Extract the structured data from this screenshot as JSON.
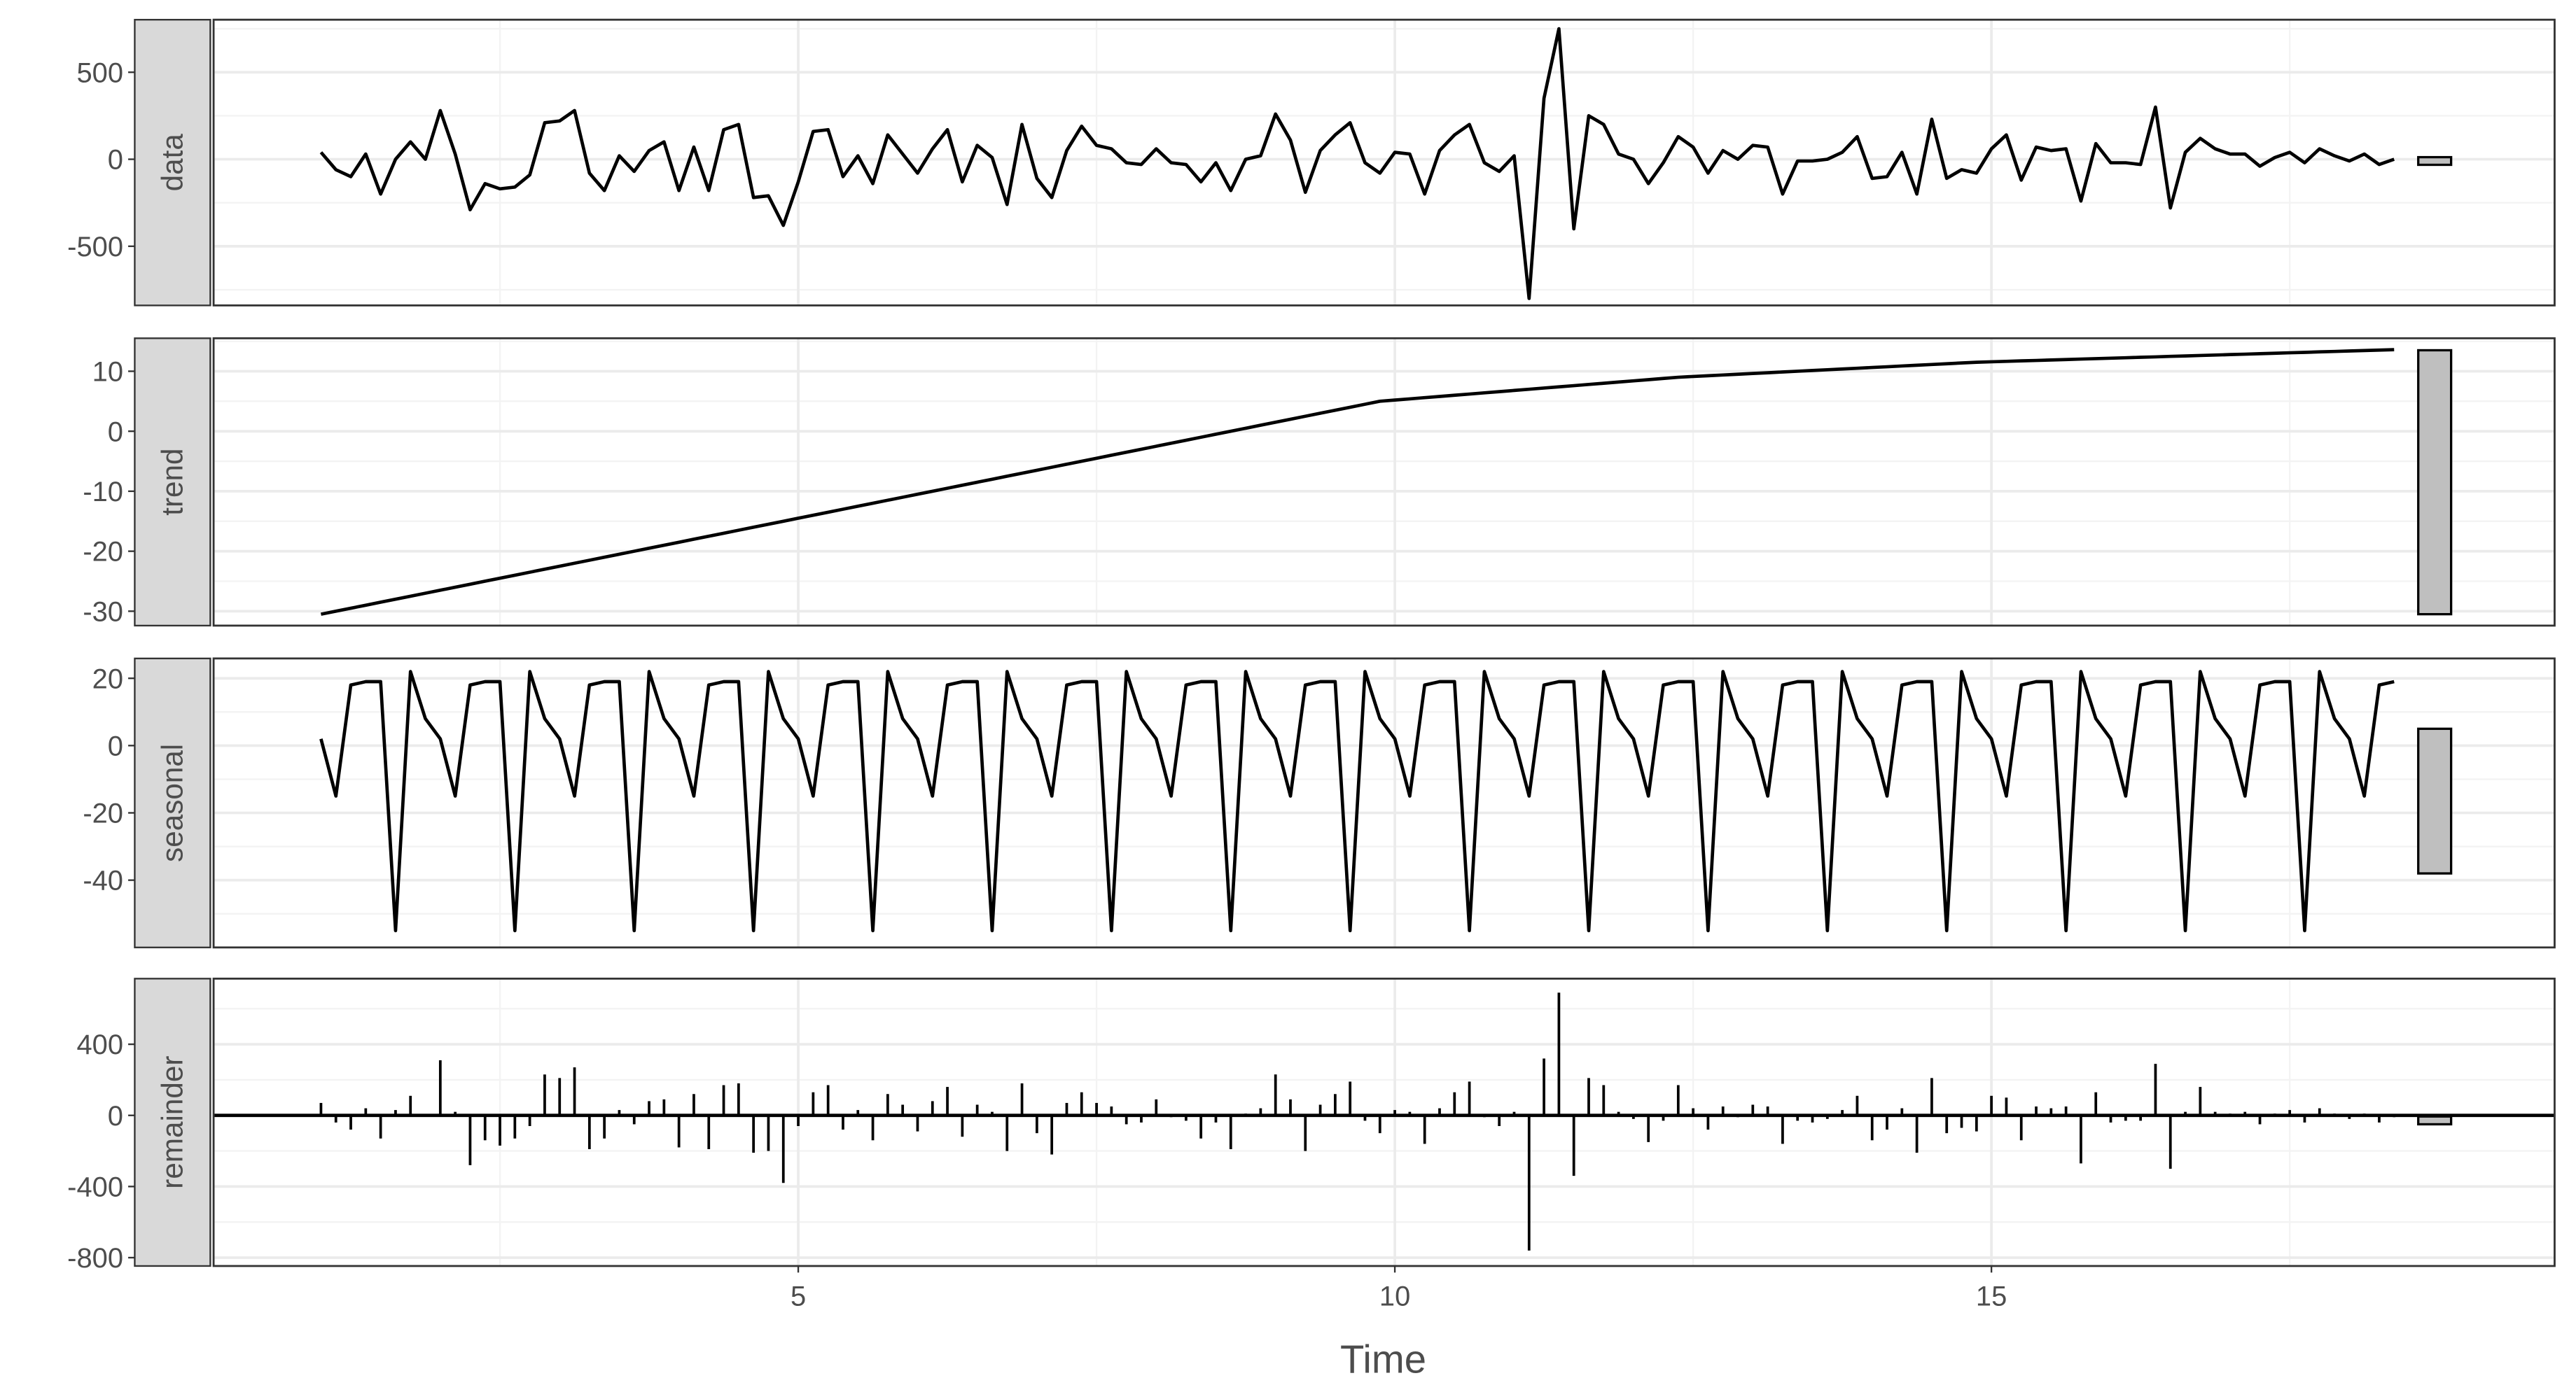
{
  "chart_data": {
    "type": "facet",
    "xlabel": "Time",
    "xlim": [
      0.1,
      19.72
    ],
    "xticks": [
      5,
      10,
      15
    ],
    "grid": true,
    "color": "#000000",
    "x": [
      1,
      1.125,
      1.25,
      1.375,
      1.5,
      1.625,
      1.75,
      1.875,
      2,
      2.125,
      2.25,
      2.375,
      2.5,
      2.625,
      2.75,
      2.875,
      3,
      3.125,
      3.25,
      3.375,
      3.5,
      3.625,
      3.75,
      3.875,
      4,
      4.125,
      4.25,
      4.375,
      4.5,
      4.625,
      4.75,
      4.875,
      5,
      5.125,
      5.25,
      5.375,
      5.5,
      5.625,
      5.75,
      5.875,
      6,
      6.125,
      6.25,
      6.375,
      6.5,
      6.625,
      6.75,
      6.875,
      7,
      7.125,
      7.25,
      7.375,
      7.5,
      7.625,
      7.75,
      7.875,
      8,
      8.125,
      8.25,
      8.375,
      8.5,
      8.625,
      8.75,
      8.875,
      9,
      9.125,
      9.25,
      9.375,
      9.5,
      9.625,
      9.75,
      9.875,
      10,
      10.125,
      10.25,
      10.375,
      10.5,
      10.625,
      10.75,
      10.875,
      11,
      11.125,
      11.25,
      11.375,
      11.5,
      11.625,
      11.75,
      11.875,
      12,
      12.125,
      12.25,
      12.375,
      12.5,
      12.625,
      12.75,
      12.875,
      13,
      13.125,
      13.25,
      13.375,
      13.5,
      13.625,
      13.75,
      13.875,
      14,
      14.125,
      14.25,
      14.375,
      14.5,
      14.625,
      14.75,
      14.875,
      15,
      15.125,
      15.25,
      15.375,
      15.5,
      15.625,
      15.75,
      15.875,
      16,
      16.125,
      16.25,
      16.375,
      16.5,
      16.625,
      16.75,
      16.875,
      17,
      17.125,
      17.25,
      17.375,
      17.5,
      17.625,
      17.75,
      17.875,
      18,
      18.125,
      18.25,
      18.375
    ],
    "panels": [
      {
        "name": "data",
        "type": "line",
        "ylim": [
          -840,
          802
        ],
        "yticks": [
          -500,
          0,
          500
        ],
        "range_bar": [
          -32,
          12
        ],
        "values": [
          40,
          -60,
          -100,
          30,
          -200,
          0,
          100,
          0,
          280,
          30,
          -290,
          -140,
          -170,
          -160,
          -90,
          210,
          220,
          280,
          -80,
          -180,
          20,
          -70,
          50,
          100,
          -180,
          70,
          -180,
          170,
          200,
          -220,
          -210,
          -380,
          -130,
          160,
          170,
          -100,
          20,
          -140,
          140,
          30,
          -80,
          60,
          170,
          -130,
          80,
          10,
          -260,
          200,
          -110,
          -220,
          50,
          190,
          80,
          60,
          -20,
          -30,
          60,
          -20,
          -30,
          -130,
          -20,
          -180,
          0,
          20,
          260,
          110,
          -190,
          50,
          140,
          210,
          -20,
          -80,
          40,
          30,
          -200,
          50,
          140,
          200,
          -20,
          -70,
          20,
          -800,
          350,
          750,
          -400,
          250,
          200,
          30,
          0,
          -140,
          -20,
          130,
          70,
          -80,
          50,
          0,
          80,
          70,
          -200,
          -10,
          -10,
          0,
          40,
          130,
          -110,
          -100,
          40,
          -200,
          230,
          -110,
          -60,
          -80,
          60,
          140,
          -120,
          70,
          50,
          60,
          -240,
          90,
          -20,
          -20,
          -30,
          300,
          -280,
          40,
          120,
          60,
          30,
          30,
          -40,
          10,
          40,
          -20,
          60,
          20,
          -10,
          30,
          -30,
          0
        ]
      },
      {
        "name": "trend",
        "type": "line",
        "ylim": [
          -32.4,
          15.5
        ],
        "yticks": [
          -30,
          -20,
          -10,
          0,
          10
        ],
        "range_bar": [
          -30.5,
          13.5
        ],
        "values": [
          -30.5,
          -30,
          -29.5,
          -29,
          -28.5,
          -28,
          -27.5,
          -27,
          -26.5,
          -26,
          -25.5,
          -25,
          -24.5,
          -24,
          -23.5,
          -23,
          -22.5,
          -22,
          -21.5,
          -21,
          -20.5,
          -20,
          -19.5,
          -19,
          -18.5,
          -18,
          -17.5,
          -17,
          -16.5,
          -16,
          -15.5,
          -15,
          -14.5,
          -14,
          -13.5,
          -13,
          -12.5,
          -12,
          -11.5,
          -11,
          -10.5,
          -10,
          -9.5,
          -9,
          -8.5,
          -8,
          -7.5,
          -7,
          -6.5,
          -6,
          -5.5,
          -5,
          -4.5,
          -4,
          -3.5,
          -3,
          -2.5,
          -2,
          -1.5,
          -1,
          -0.5,
          0,
          0.5,
          1,
          1.5,
          2,
          2.5,
          3,
          3.5,
          4,
          4.5,
          5,
          5.2,
          5.4,
          5.6,
          5.8,
          6,
          6.2,
          6.4,
          6.6,
          6.8,
          7,
          7.2,
          7.4,
          7.6,
          7.8,
          8,
          8.2,
          8.4,
          8.6,
          8.8,
          9,
          9.13,
          9.25,
          9.38,
          9.5,
          9.63,
          9.75,
          9.88,
          10,
          10.13,
          10.25,
          10.38,
          10.5,
          10.63,
          10.75,
          10.88,
          11,
          11.13,
          11.25,
          11.38,
          11.5,
          11.58,
          11.65,
          11.73,
          11.8,
          11.88,
          11.95,
          12.03,
          12.1,
          12.18,
          12.25,
          12.33,
          12.4,
          12.48,
          12.55,
          12.63,
          12.7,
          12.78,
          12.85,
          12.93,
          13,
          13.08,
          13.15,
          13.23,
          13.3,
          13.38,
          13.45,
          13.53,
          13.6
        ]
      },
      {
        "name": "seasonal",
        "type": "line",
        "ylim": [
          -60,
          25.9
        ],
        "yticks": [
          -40,
          -20,
          0,
          20
        ],
        "range_bar": [
          -38,
          5
        ],
        "values": [
          2,
          -15,
          18,
          19,
          19,
          -55,
          22,
          8,
          2,
          -15,
          18,
          19,
          19,
          -55,
          22,
          8,
          2,
          -15,
          18,
          19,
          19,
          -55,
          22,
          8,
          2,
          -15,
          18,
          19,
          19,
          -55,
          22,
          8,
          2,
          -15,
          18,
          19,
          19,
          -55,
          22,
          8,
          2,
          -15,
          18,
          19,
          19,
          -55,
          22,
          8,
          2,
          -15,
          18,
          19,
          19,
          -55,
          22,
          8,
          2,
          -15,
          18,
          19,
          19,
          -55,
          22,
          8,
          2,
          -15,
          18,
          19,
          19,
          -55,
          22,
          8,
          2,
          -15,
          18,
          19,
          19,
          -55,
          22,
          8,
          2,
          -15,
          18,
          19,
          19,
          -55,
          22,
          8,
          2,
          -15,
          18,
          19,
          19,
          -55,
          22,
          8,
          2,
          -15,
          18,
          19,
          19,
          -55,
          22,
          8,
          2,
          -15,
          18,
          19,
          19,
          -55,
          22,
          8,
          2,
          -15,
          18,
          19,
          19,
          -55,
          22,
          8,
          2,
          -15,
          18,
          19,
          19,
          -55,
          22,
          8,
          2,
          -15,
          18,
          19,
          19,
          -55,
          22,
          8,
          2,
          -15,
          18,
          19
        ]
      },
      {
        "name": "remainder",
        "type": "bar",
        "ylim": [
          -847,
          769
        ],
        "yticks": [
          -800,
          -400,
          0,
          400
        ],
        "range_bar": [
          -50,
          -6
        ],
        "values": [
          70,
          -40,
          -80,
          40,
          -130,
          30,
          110,
          0,
          310,
          20,
          -280,
          -140,
          -170,
          -130,
          -60,
          230,
          210,
          270,
          -190,
          -130,
          30,
          -50,
          80,
          90,
          -180,
          120,
          -190,
          170,
          180,
          -210,
          -200,
          -380,
          -60,
          130,
          170,
          -80,
          30,
          -140,
          120,
          60,
          -90,
          80,
          160,
          -120,
          60,
          20,
          -200,
          180,
          -100,
          -220,
          70,
          130,
          70,
          50,
          -50,
          -40,
          90,
          -10,
          -30,
          -130,
          -40,
          -190,
          10,
          40,
          230,
          90,
          -200,
          60,
          120,
          190,
          -30,
          -100,
          30,
          20,
          -160,
          40,
          130,
          190,
          -10,
          -60,
          20,
          -760,
          320,
          690,
          -340,
          210,
          170,
          20,
          -20,
          -150,
          -30,
          170,
          40,
          -80,
          50,
          -10,
          60,
          50,
          -160,
          -30,
          -40,
          -20,
          30,
          110,
          -140,
          -80,
          40,
          -210,
          210,
          -100,
          -70,
          -90,
          110,
          100,
          -140,
          50,
          40,
          50,
          -270,
          130,
          -40,
          -30,
          -30,
          290,
          -300,
          20,
          160,
          20,
          10,
          20,
          -50,
          10,
          30,
          -40,
          40,
          10,
          -20,
          10,
          -40,
          -10
        ]
      }
    ]
  }
}
